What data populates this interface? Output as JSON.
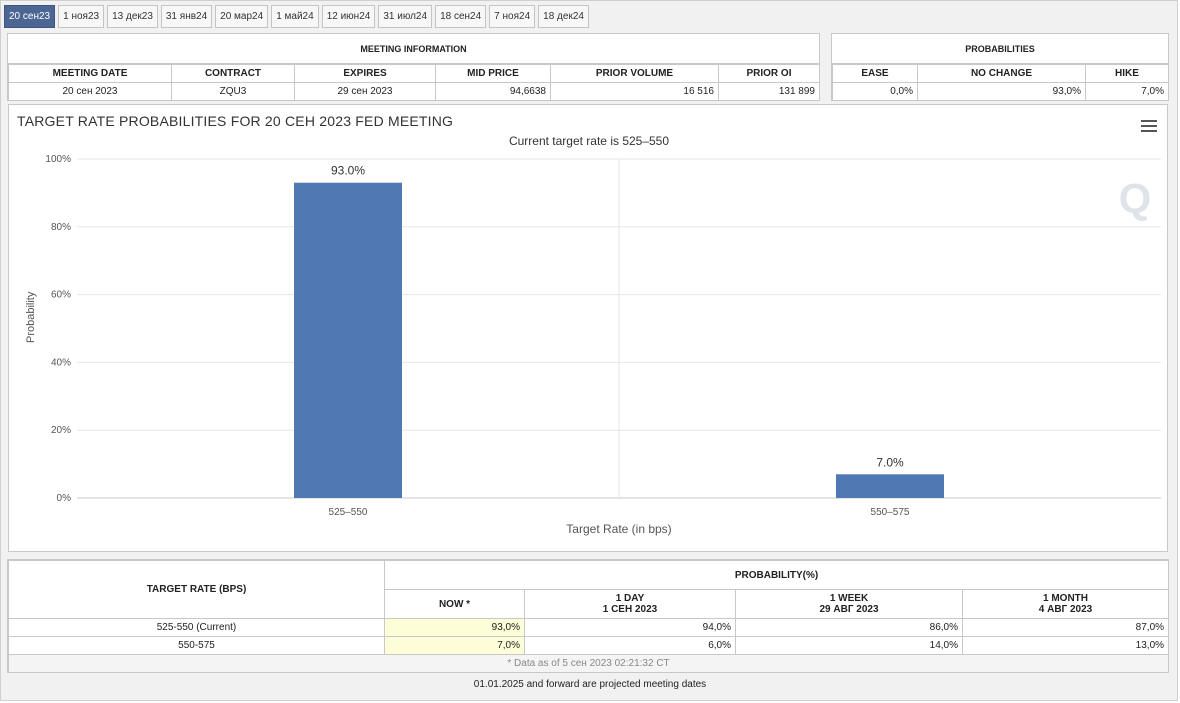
{
  "tabs": [
    "20 сен23",
    "1 ноя23",
    "13 дек23",
    "31 янв24",
    "20 мар24",
    "1 май24",
    "12 июн24",
    "31 июл24",
    "18 сен24",
    "7 ноя24",
    "18 дек24"
  ],
  "meeting_info": {
    "title": "MEETING INFORMATION",
    "headers": [
      "MEETING DATE",
      "CONTRACT",
      "EXPIRES",
      "MID PRICE",
      "PRIOR VOLUME",
      "PRIOR OI"
    ],
    "row": [
      "20 сен 2023",
      "ZQU3",
      "29 сен 2023",
      "94,6638",
      "16 516",
      "131 899"
    ]
  },
  "probabilities": {
    "title": "PROBABILITIES",
    "headers": [
      "EASE",
      "NO CHANGE",
      "HIKE"
    ],
    "row": [
      "0,0%",
      "93,0%",
      "7,0%"
    ]
  },
  "chart_data": {
    "type": "bar",
    "title": "TARGET RATE PROBABILITIES FOR 20 СЕН 2023 FED MEETING",
    "subtitle": "Current target rate is 525–550",
    "xlabel": "Target Rate (in bps)",
    "ylabel": "Probability",
    "categories": [
      "525–550",
      "550–575"
    ],
    "values": [
      93.0,
      7.0
    ],
    "data_labels": [
      "93.0%",
      "7.0%"
    ],
    "ylim": [
      0,
      100
    ],
    "yticks": [
      "0%",
      "20%",
      "40%",
      "60%",
      "80%",
      "100%"
    ],
    "bar_color": "#5079b4",
    "grid": true,
    "watermark": "Q"
  },
  "history": {
    "rate_header": "TARGET RATE (BPS)",
    "prob_header": "PROBABILITY(%)",
    "cols": [
      {
        "line1": "NOW *",
        "line2": ""
      },
      {
        "line1": "1 DAY",
        "line2": "1 СЕН 2023"
      },
      {
        "line1": "1 WEEK",
        "line2": "29 АВГ 2023"
      },
      {
        "line1": "1 MONTH",
        "line2": "4 АВГ 2023"
      }
    ],
    "rows": [
      {
        "rate": "525-550 (Current)",
        "values": [
          "93,0%",
          "94,0%",
          "86,0%",
          "87,0%"
        ]
      },
      {
        "rate": "550-575",
        "values": [
          "7,0%",
          "6,0%",
          "14,0%",
          "13,0%"
        ]
      }
    ],
    "footnote": "* Data as of 5 сен 2023 02:21:32 CT"
  },
  "footer_note": "01.01.2025 and forward are projected meeting dates",
  "colors": {
    "accent": "#4c6694",
    "now_highlight": "#fdfdd8"
  }
}
